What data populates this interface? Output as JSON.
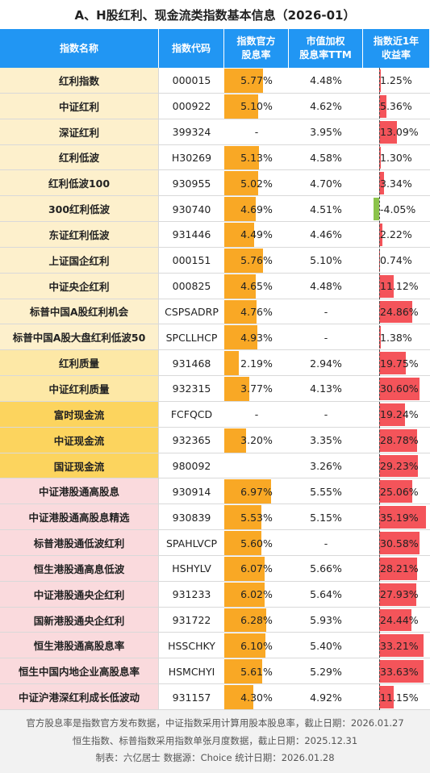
{
  "title": "A、H股红利、现金流类指数基本信息（2026-01）",
  "table": {
    "header": [
      "指数名称",
      "指数代码",
      "指数官方\n股息率",
      "市值加权\n股息率TTM",
      "指数近1年\n收益率"
    ],
    "rows": [
      {
        "name": "红利指数",
        "code": "000015",
        "ttm": "4.48%",
        "color": "#fdf0cc"
      },
      {
        "name": "中证红利",
        "code": "000922",
        "ttm": "4.62%",
        "color": "#fdf0cc"
      },
      {
        "name": "深证红利",
        "code": "399324",
        "ttm": "3.95%",
        "color": "#fdf0cc"
      },
      {
        "name": "红利低波",
        "code": "H30269",
        "ttm": "4.58%",
        "color": "#fdf0cc"
      },
      {
        "name": "红利低波100",
        "code": "930955",
        "ttm": "4.70%",
        "color": "#fdf0cc"
      },
      {
        "name": "300红利低波",
        "code": "930740",
        "ttm": "4.51%",
        "color": "#fdf0cc"
      },
      {
        "name": "东证红利低波",
        "code": "931446",
        "ttm": "4.46%",
        "color": "#fdf0cc"
      },
      {
        "name": "上证国企红利",
        "code": "000151",
        "ttm": "5.10%",
        "color": "#fdf0cc"
      },
      {
        "name": "中证央企红利",
        "code": "000825",
        "ttm": "4.48%",
        "color": "#fdf0cc"
      },
      {
        "name": "标普中国A股红利机会",
        "code": "CSPSADRP",
        "ttm": "-",
        "color": "#fdf0cc"
      },
      {
        "name": "标普中国A股大盘红利低波50",
        "code": "SPCLLHCP",
        "ttm": "-",
        "color": "#fdf0cc"
      },
      {
        "name": "红利质量",
        "code": "931468",
        "ttm": "2.94%",
        "color": "#fde8a6"
      },
      {
        "name": "中证红利质量",
        "code": "932315",
        "ttm": "4.13%",
        "color": "#fde8a6"
      },
      {
        "name": "富时现金流",
        "code": "FCFQCD",
        "ttm": "-",
        "color": "#fcd45e"
      },
      {
        "name": "中证现金流",
        "code": "932365",
        "ttm": "3.35%",
        "color": "#fcd45e"
      },
      {
        "name": "国证现金流",
        "code": "980092",
        "ttm": "3.26%",
        "color": "#fcd45e"
      },
      {
        "name": "中证港股通高股息",
        "code": "930914",
        "ttm": "5.55%",
        "color": "#fadadd"
      },
      {
        "name": "中证港股通高股息精选",
        "code": "930839",
        "ttm": "5.15%",
        "color": "#fadadd"
      },
      {
        "name": "标普港股通低波红利",
        "code": "SPAHLVCP",
        "ttm": "-",
        "color": "#fadadd"
      },
      {
        "name": "恒生港股通高息低波",
        "code": "HSHYLV",
        "ttm": "5.66%",
        "color": "#fadadd"
      },
      {
        "name": "中证港股通央企红利",
        "code": "931233",
        "ttm": "5.64%",
        "color": "#fadadd"
      },
      {
        "name": "国新港股通央企红利",
        "code": "931722",
        "ttm": "5.93%",
        "color": "#fadadd"
      },
      {
        "name": "恒生港股通高股息率",
        "code": "HSSCHKY",
        "ttm": "5.40%",
        "color": "#fadadd"
      },
      {
        "name": "恒生中国内地企业高股息率",
        "code": "HSMCHYI",
        "ttm": "5.29%",
        "color": "#fadadd"
      },
      {
        "name": "中证沪港深红利成长低波动",
        "code": "931157",
        "ttm": "4.92%",
        "color": "#fadadd"
      }
    ],
    "yield": {
      "color": "#f9a825",
      "values": [
        5.77,
        5.1,
        null,
        5.13,
        5.02,
        4.69,
        4.49,
        5.76,
        4.65,
        4.76,
        4.93,
        2.19,
        3.77,
        null,
        3.2,
        null,
        6.97,
        5.53,
        5.6,
        6.07,
        6.02,
        6.28,
        6.1,
        5.61,
        4.3
      ],
      "value_labels": [
        "5.77%",
        "5.10%",
        "-",
        "5.13%",
        "5.02%",
        "4.69%",
        "4.49%",
        "5.76%",
        "4.65%",
        "4.76%",
        "4.93%",
        "2.19%",
        "3.77%",
        "-",
        "3.20%",
        null,
        "6.97%",
        "5.53%",
        "5.60%",
        "6.07%",
        "6.02%",
        "6.28%",
        "6.10%",
        "5.61%",
        "4.30%"
      ]
    },
    "returns": {
      "color": "#f4545a",
      "negative_color": "#8bc34a",
      "values": [
        1.25,
        5.36,
        13.09,
        1.3,
        3.34,
        -4.05,
        2.22,
        0.74,
        11.12,
        24.86,
        1.38,
        19.75,
        30.6,
        19.24,
        28.78,
        29.23,
        25.06,
        35.19,
        30.58,
        28.21,
        27.93,
        24.44,
        33.21,
        33.63,
        11.15
      ],
      "value_labels": [
        "1.25%",
        "5.36%",
        "13.09%",
        "1.30%",
        "3.34%",
        "-4.05%",
        "2.22%",
        "0.74%",
        "11.12%",
        "24.86%",
        "1.38%",
        "19.75%",
        "30.60%",
        "19.24%",
        "28.78%",
        "29.23%",
        "25.06%",
        "35.19%",
        "30.58%",
        "28.21%",
        "27.93%",
        "24.44%",
        "33.21%",
        "33.63%",
        "11.15%"
      ]
    }
  },
  "footer": [
    "官方股息率是指数官方发布数据，中证指数采用计算用股本股息率，截止日期：2026.01.27",
    "恒生指数、标普指数采用指数单张月度数据，截止日期：2025.12.31",
    "制表：六亿居士 数据源：Choice 统计日期：2026.01.28"
  ]
}
